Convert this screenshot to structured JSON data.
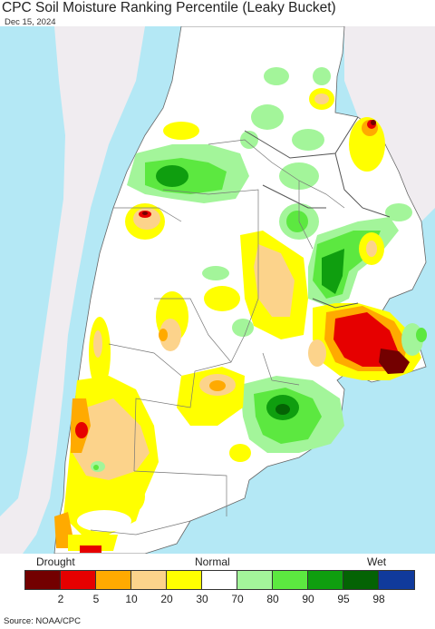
{
  "title": "CPC Soil Moisture Ranking Percentile (Leaky Bucket)",
  "date": "Dec 15, 2024",
  "legend": {
    "drought_label": "Drought",
    "normal_label": "Normal",
    "wet_label": "Wet",
    "ticks": [
      "2",
      "5",
      "10",
      "20",
      "30",
      "70",
      "80",
      "90",
      "95",
      "98"
    ],
    "colors": [
      "#730000",
      "#e60000",
      "#ffaa00",
      "#fcd38b",
      "#ffff00",
      "#ffffff",
      "#a3f59a",
      "#5ce840",
      "#0f9e0f",
      "#046304",
      "#103a9c"
    ]
  },
  "map_colors": {
    "ocean": "#b4e8f5",
    "land_outside": "#f0ecf0",
    "land": "#ffffff"
  },
  "source": "Source: NOAA/CPC"
}
